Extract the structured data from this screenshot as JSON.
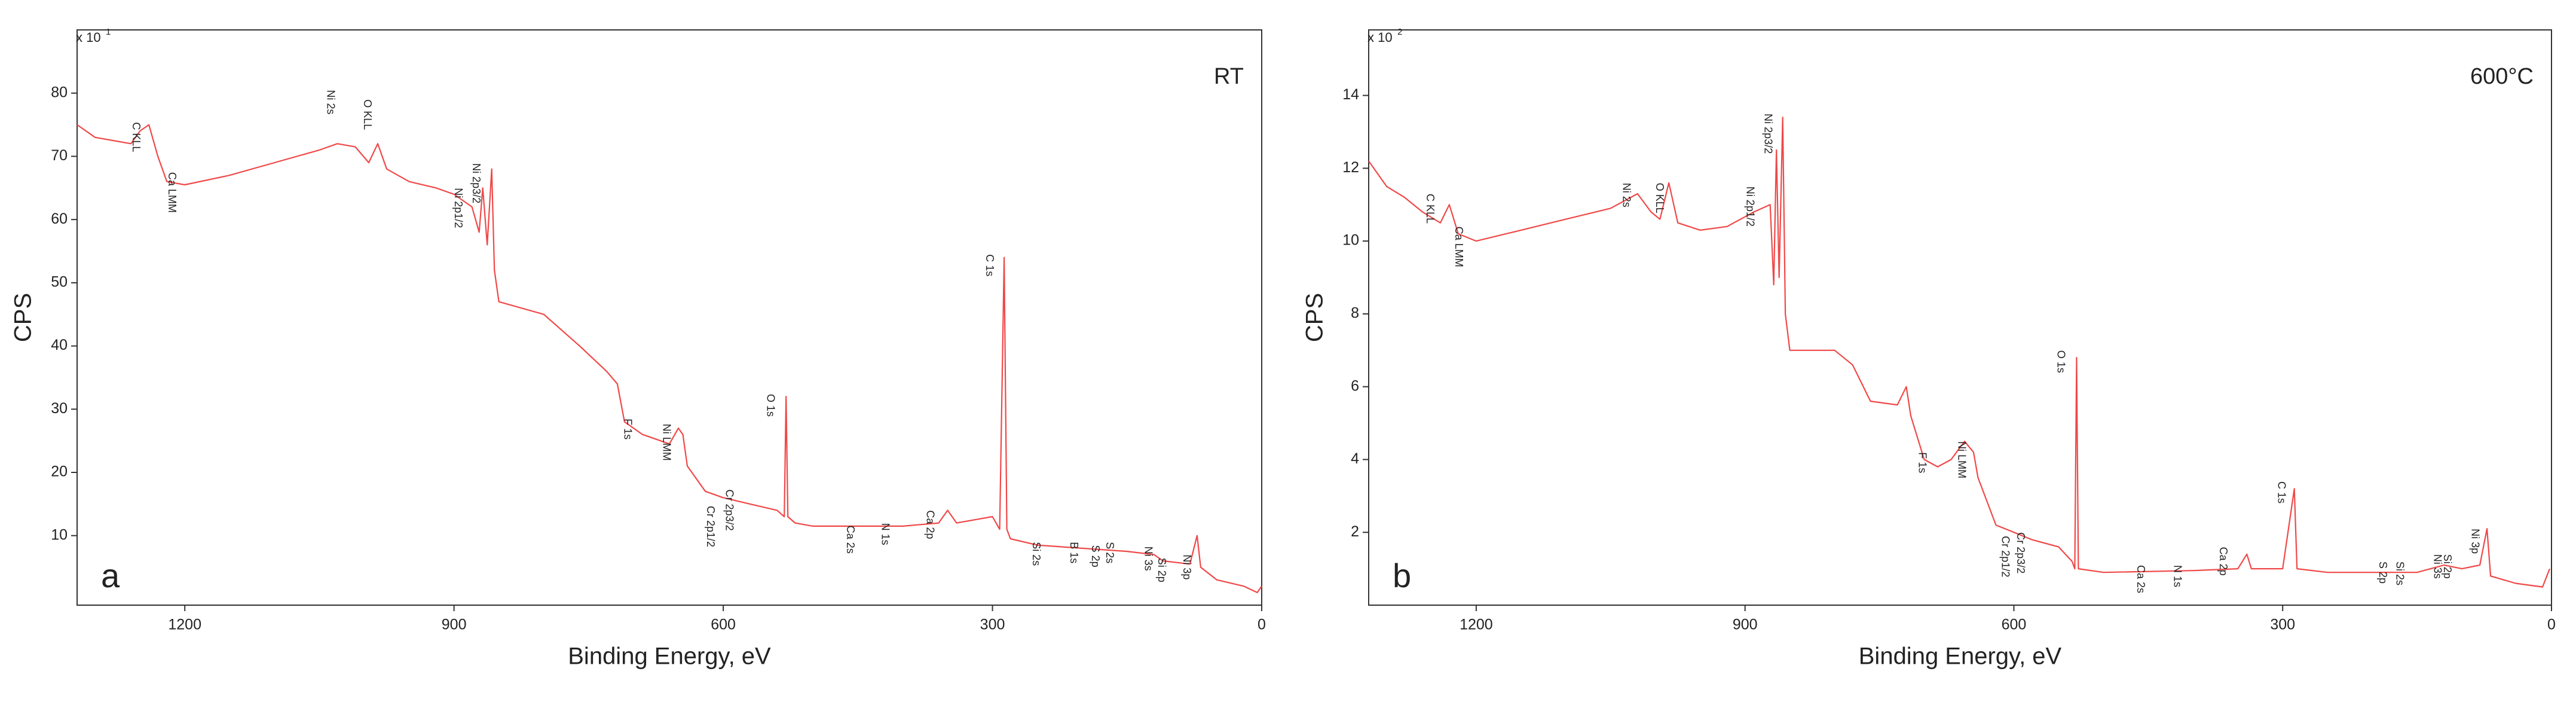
{
  "chart_data": [
    {
      "type": "line",
      "corner_label": "a",
      "label": "RT",
      "multiplier": {
        "base": "x 10",
        "exponent": "1"
      },
      "xlabel": "Binding Energy, eV",
      "ylabel": "CPS",
      "xlim": [
        1320,
        0
      ],
      "ylim": [
        -1,
        90
      ],
      "xticks": [
        1200,
        900,
        600,
        300,
        0
      ],
      "yticks": [
        10,
        20,
        30,
        40,
        50,
        60,
        70,
        80
      ],
      "x": [
        1320,
        1300,
        1280,
        1260,
        1250,
        1240,
        1230,
        1220,
        1200,
        1150,
        1100,
        1050,
        1030,
        1010,
        995,
        985,
        975,
        950,
        920,
        900,
        880,
        872,
        868,
        863,
        858,
        855,
        850,
        800,
        760,
        730,
        718,
        710,
        690,
        670,
        660,
        650,
        645,
        640,
        620,
        600,
        570,
        540,
        532,
        530,
        528,
        520,
        500,
        450,
        400,
        360,
        350,
        340,
        300,
        292,
        287,
        284,
        280,
        250,
        200,
        150,
        120,
        110,
        80,
        72,
        68,
        50,
        20,
        5,
        0
      ],
      "series": [
        {
          "color": "#f04848",
          "values": [
            75,
            73,
            72.5,
            72,
            74,
            75,
            70,
            66,
            65.5,
            67,
            69,
            71,
            72,
            71.5,
            69,
            72,
            68,
            66,
            65,
            64,
            62,
            58,
            65,
            56,
            68,
            52,
            47,
            45,
            40,
            36,
            34,
            28,
            26,
            25,
            24.5,
            27,
            26,
            21,
            17,
            16,
            15,
            14,
            13,
            32,
            13,
            12,
            11.5,
            11.5,
            11.5,
            12,
            14,
            12,
            13,
            11,
            54,
            11,
            9.5,
            8.5,
            8,
            7.5,
            7,
            6,
            5.5,
            10,
            5,
            3,
            2,
            1,
            2
          ]
        }
      ],
      "annotations": [
        {
          "text": "C KLL",
          "x": 1255,
          "y": 75.4
        },
        {
          "text": "Ca LMM",
          "x": 1215,
          "y": 67.5
        },
        {
          "text": "Ni 2s",
          "x": 1038,
          "y": 80.5
        },
        {
          "text": "O KLL",
          "x": 997,
          "y": 79
        },
        {
          "text": "Ni 2p3/2",
          "x": 876,
          "y": 68.9
        },
        {
          "text": "Ni 2p1/2",
          "x": 896,
          "y": 65
        },
        {
          "text": "C 1s",
          "x": 304,
          "y": 54.5
        },
        {
          "text": "O 1s",
          "x": 548,
          "y": 32.4
        },
        {
          "text": "F 1s",
          "x": 707,
          "y": 28.5
        },
        {
          "text": "Ni LMM",
          "x": 664,
          "y": 27.7
        },
        {
          "text": "Cr 2p3/2",
          "x": 594,
          "y": 17.3
        },
        {
          "text": "Cr 2p1/2",
          "x": 615,
          "y": 14.7
        },
        {
          "text": "Ca 2s",
          "x": 459,
          "y": 11.6
        },
        {
          "text": "N 1s",
          "x": 420,
          "y": 12
        },
        {
          "text": "Ca 2p",
          "x": 370,
          "y": 14
        },
        {
          "text": "Si 2s",
          "x": 252,
          "y": 9
        },
        {
          "text": "B 1s",
          "x": 210,
          "y": 9
        },
        {
          "text": "S 2p",
          "x": 186,
          "y": 8.5
        },
        {
          "text": "S 2s",
          "x": 170,
          "y": 9
        },
        {
          "text": "Ni 3s",
          "x": 127,
          "y": 8.3
        },
        {
          "text": "Si 2p",
          "x": 112,
          "y": 6.5
        },
        {
          "text": "Ni 3p",
          "x": 84,
          "y": 7
        }
      ]
    },
    {
      "type": "line",
      "corner_label": "b",
      "label": "600°C",
      "multiplier": {
        "base": "x 10",
        "exponent": "2"
      },
      "xlabel": "Binding Energy, eV",
      "ylabel": "CPS",
      "xlim": [
        1320,
        0
      ],
      "ylim": [
        0,
        15.8
      ],
      "xticks": [
        1200,
        900,
        600,
        300,
        0
      ],
      "yticks": [
        2,
        4,
        6,
        8,
        10,
        12,
        14
      ],
      "x": [
        1320,
        1300,
        1280,
        1260,
        1240,
        1230,
        1220,
        1200,
        1150,
        1100,
        1050,
        1020,
        1005,
        995,
        985,
        975,
        950,
        920,
        890,
        872,
        868,
        865,
        862,
        858,
        855,
        850,
        800,
        780,
        760,
        730,
        720,
        715,
        700,
        685,
        670,
        655,
        645,
        640,
        620,
        600,
        580,
        550,
        535,
        532,
        530,
        528,
        500,
        400,
        350,
        340,
        335,
        300,
        287,
        284,
        250,
        150,
        120,
        100,
        80,
        72,
        68,
        40,
        10,
        2
      ],
      "series": [
        {
          "color": "#f04848",
          "values": [
            12.2,
            11.5,
            11.2,
            10.8,
            10.5,
            11,
            10.2,
            10,
            10.3,
            10.6,
            10.9,
            11.3,
            10.8,
            10.6,
            11.6,
            10.5,
            10.3,
            10.4,
            10.8,
            11,
            8.8,
            12.5,
            9,
            13.4,
            8,
            7,
            7,
            6.6,
            5.6,
            5.5,
            6,
            5.2,
            4,
            3.8,
            4,
            4.5,
            4.2,
            3.5,
            2.2,
            2,
            1.8,
            1.6,
            1.2,
            1.0,
            6.8,
            1,
            0.9,
            0.95,
            1,
            1.4,
            1,
            1,
            3.2,
            1,
            0.9,
            0.9,
            1.1,
            1,
            1.1,
            2.1,
            0.8,
            0.6,
            0.5,
            1
          ]
        }
      ],
      "annotations": [
        {
          "text": "C KLL",
          "x": 1252,
          "y": 11.3
        },
        {
          "text": "Ca LMM",
          "x": 1220,
          "y": 10.4
        },
        {
          "text": "Ni 2s",
          "x": 1033,
          "y": 11.6
        },
        {
          "text": "O KLL",
          "x": 996,
          "y": 11.6
        },
        {
          "text": "Ni 2p3/2",
          "x": 875,
          "y": 13.5
        },
        {
          "text": "Ni 2p1/2",
          "x": 895,
          "y": 11.5
        },
        {
          "text": "O 1s",
          "x": 548,
          "y": 7
        },
        {
          "text": "C 1s",
          "x": 302,
          "y": 3.4
        },
        {
          "text": "F 1s",
          "x": 703,
          "y": 4.2
        },
        {
          "text": "Ni LMM",
          "x": 659,
          "y": 4.5
        },
        {
          "text": "Cr 2p3/2",
          "x": 593,
          "y": 2
        },
        {
          "text": "Cr 2p1/2",
          "x": 610,
          "y": 1.9
        },
        {
          "text": "Ca 2s",
          "x": 459,
          "y": 1.1
        },
        {
          "text": "N 1s",
          "x": 418,
          "y": 1.1
        },
        {
          "text": "Ca 2p",
          "x": 367,
          "y": 1.6
        },
        {
          "text": "S 2p",
          "x": 189,
          "y": 1.2
        },
        {
          "text": "Si 2s",
          "x": 170,
          "y": 1.2
        },
        {
          "text": "Ni 3s",
          "x": 128,
          "y": 1.4
        },
        {
          "text": "Si 2p",
          "x": 117,
          "y": 1.4
        },
        {
          "text": "Ni 3p",
          "x": 86,
          "y": 2.1
        }
      ]
    }
  ]
}
